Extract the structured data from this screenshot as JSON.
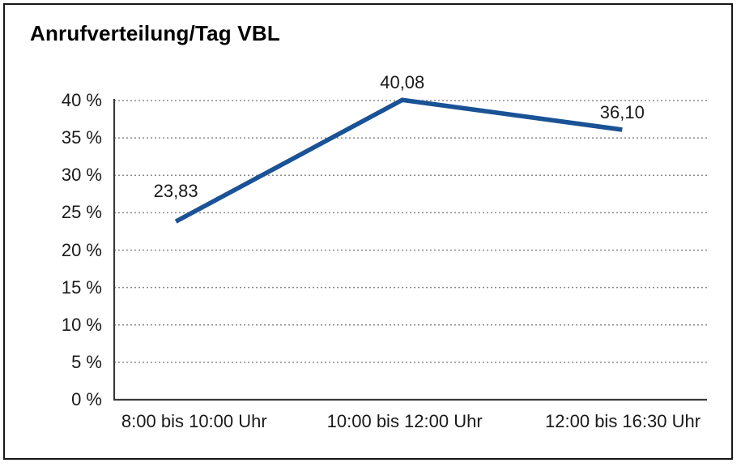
{
  "window": {
    "background_color": "#ffffff",
    "border_color": "#161616"
  },
  "chart_data": {
    "type": "line",
    "title": "Anrufverteilung/Tag VBL",
    "categories": [
      "8:00 bis 10:00 Uhr",
      "10:00 bis 12:00 Uhr",
      "12:00 bis 16:30 Uhr"
    ],
    "values": [
      23.83,
      40.08,
      36.1
    ],
    "point_labels": [
      "23,83",
      "40,08",
      "36,10"
    ],
    "y_ticks": [
      "0 %",
      "5 %",
      "10 %",
      "15 %",
      "20 %",
      "25 %",
      "30 %",
      "35 %",
      "40 %"
    ],
    "ytick_step": 5,
    "ylim": [
      0,
      40
    ],
    "xlabel": "",
    "ylabel": "",
    "grid": "horizontal-dotted",
    "legend": "none",
    "colors": {
      "line": "#1A5296",
      "axis": "#3a3a3a",
      "gridline": "#8a8a8a",
      "text": "#1a1a1a",
      "title": "#000000"
    }
  }
}
